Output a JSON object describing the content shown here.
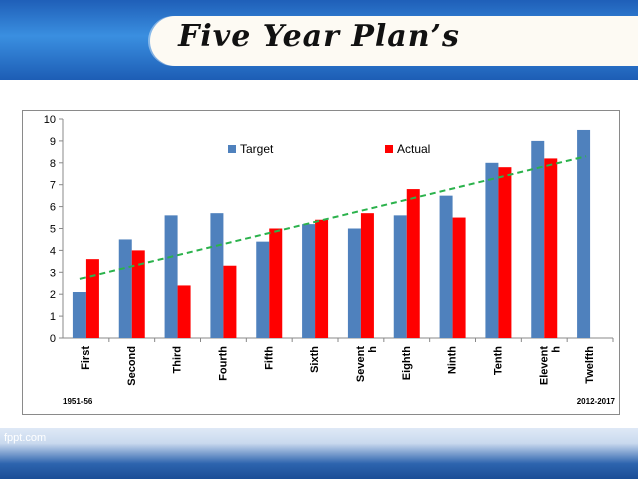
{
  "slide": {
    "title": "Five Year Plan’s",
    "footer_brand": "fppt.com",
    "start_label": "1951-56",
    "end_label": "2012-2017"
  },
  "colors": {
    "target": "#4f81bd",
    "actual": "#ff0000",
    "trend": "#2bb24c"
  },
  "chart_data": {
    "type": "bar",
    "categories": [
      "First",
      "Second",
      "Third",
      "Fourth",
      "Fifth",
      "Sixth",
      "Sevent\nh",
      "Eighth",
      "Ninth",
      "Tenth",
      "Elevent\nh",
      "Twelfth"
    ],
    "series": [
      {
        "name": "Target",
        "values": [
          2.1,
          4.5,
          5.6,
          5.7,
          4.4,
          5.2,
          5.0,
          5.6,
          6.5,
          8.0,
          9.0,
          9.5
        ]
      },
      {
        "name": "Actual",
        "values": [
          3.6,
          4.0,
          2.4,
          3.3,
          5.0,
          5.4,
          5.7,
          6.8,
          5.5,
          7.8,
          8.2,
          null
        ]
      }
    ],
    "trendline": {
      "start": 2.7,
      "end": 8.3,
      "style": "dashed"
    },
    "ylim": [
      0,
      10
    ],
    "yticks": [
      0,
      1,
      2,
      3,
      4,
      5,
      6,
      7,
      8,
      9,
      10
    ],
    "grid": false,
    "legend_position": "top-center"
  }
}
